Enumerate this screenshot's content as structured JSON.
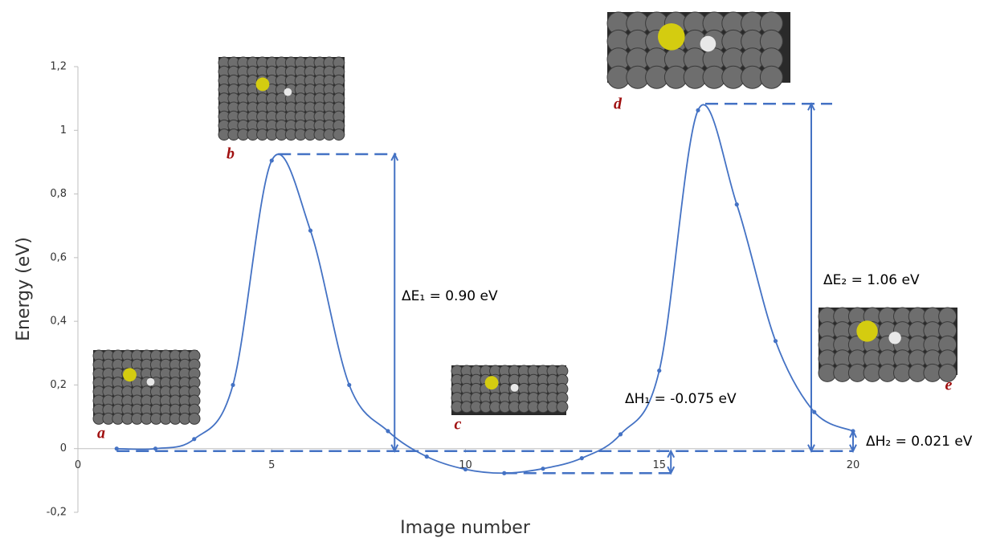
{
  "chart_data": {
    "type": "line",
    "x_label": "Image number",
    "y_label": "Energy (eV)",
    "xlim": [
      0,
      20
    ],
    "xticks": [
      0,
      5,
      10,
      15,
      20
    ],
    "ylim": [
      -0.2,
      1.2
    ],
    "yticks": [
      {
        "value": -0.2,
        "label": "-0,2"
      },
      0,
      {
        "value": 0.2,
        "label": "0,2"
      },
      {
        "value": 0.4,
        "label": "0,4"
      },
      {
        "value": 0.6,
        "label": "0,6"
      },
      {
        "value": 0.8,
        "label": "0,8"
      },
      1,
      {
        "value": 1.2,
        "label": "1,2"
      }
    ],
    "x": [
      1,
      2,
      3,
      4,
      5,
      6,
      7,
      8,
      9,
      10,
      11,
      12,
      13,
      14,
      15,
      16,
      17,
      18,
      19,
      20
    ],
    "series": [
      {
        "color": "#4472c4",
        "values": [
          0,
          0,
          0.03,
          0.2,
          0.905,
          0.685,
          0.2,
          0.055,
          -0.025,
          -0.065,
          -0.077,
          -0.063,
          -0.03,
          0.045,
          0.245,
          1.063,
          0.767,
          0.338,
          0.115,
          0.055
        ]
      }
    ],
    "annotations": [
      "ΔE₁ = 0.90 eV",
      "ΔE₂ = 1.06 eV",
      "ΔH₁ = -0.075 eV",
      "ΔH₂ = 0.021 eV"
    ],
    "state_labels": [
      "a",
      "b",
      "c",
      "d",
      "e"
    ]
  }
}
